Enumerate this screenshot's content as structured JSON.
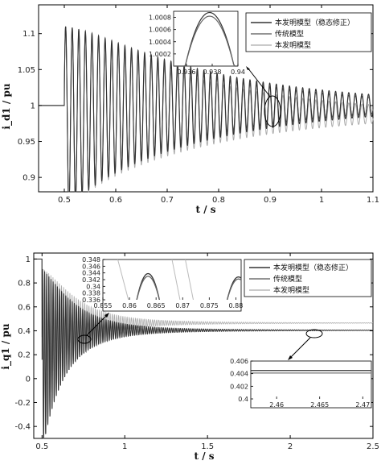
{
  "chart_data": [
    {
      "type": "line",
      "xlabel": "t / s",
      "ylabel": "i_d1 / pu",
      "xlim": [
        0.45,
        1.1
      ],
      "ylim": [
        0.88,
        1.14
      ],
      "xticks": [
        "0.5",
        "0.6",
        "0.7",
        "0.8",
        "0.9",
        "1",
        "1.1"
      ],
      "yticks": [
        "0.9",
        "0.95",
        "1",
        "1.05",
        "1.1"
      ],
      "grid": false,
      "legend_position": "top-right",
      "series": [
        {
          "name": "本发明模型（稳态修正）",
          "color": "#333333",
          "steady": 1.0,
          "step_time": 0.5,
          "amplitude0": 0.13,
          "decay_time": 0.28,
          "period": 0.0128
        },
        {
          "name": "传统模型",
          "color": "#555555",
          "steady": 1.0,
          "step_time": 0.5,
          "amplitude0": 0.13,
          "decay_time": 0.25,
          "period": 0.0128
        },
        {
          "name": "本发明模型",
          "color": "#aaaaaa",
          "steady": 0.988,
          "step_time": 0.5,
          "amplitude0": 0.13,
          "decay_time": 0.26,
          "period": 0.0128
        }
      ],
      "inset": {
        "xlim": [
          0.935,
          0.94
        ],
        "ylim": [
          1.0,
          1.0009
        ],
        "xticks": [
          "0.936",
          "0.938",
          "0.94"
        ],
        "yticks": [
          "1.0002",
          "1.0004",
          "1.0006",
          "1.0008"
        ],
        "peaks": [
          {
            "series": "本发明模型（稳态修正）",
            "x_peak": 0.9378,
            "y_peak": 1.00088
          },
          {
            "series": "传统模型",
            "x_peak": 0.9378,
            "y_peak": 1.00082
          }
        ]
      }
    },
    {
      "type": "line",
      "xlabel": "t / s",
      "ylabel": "i_q1 / pu",
      "xlim": [
        0.45,
        2.5
      ],
      "ylim": [
        -0.5,
        1.05
      ],
      "xticks": [
        "0.5",
        "1",
        "1.5",
        "2",
        "2.5"
      ],
      "yticks": [
        "-0.4",
        "-0.2",
        "0",
        "0.2",
        "0.4",
        "0.6",
        "0.8",
        "1"
      ],
      "grid": false,
      "legend_position": "top-right",
      "series": [
        {
          "name": "本发明模型（稳态修正）",
          "color": "#333333",
          "steady": 0.404,
          "initial": 1.0,
          "step_time": 0.5
        },
        {
          "name": "传统模型",
          "color": "#555555",
          "steady": 0.404,
          "initial": 1.0,
          "step_time": 0.5
        },
        {
          "name": "本发明模型",
          "color": "#aaaaaa",
          "steady": 0.465,
          "initial": 1.0,
          "step_time": 0.5
        }
      ],
      "inset_top": {
        "xlim": [
          0.855,
          0.881
        ],
        "ylim": [
          0.336,
          0.348
        ],
        "xticks": [
          "0.855",
          "0.86",
          "0.865",
          "0.87",
          "0.875",
          "0.88"
        ],
        "yticks": [
          "0.336",
          "0.338",
          "0.34",
          "0.342",
          "0.344",
          "0.346",
          "0.348"
        ]
      },
      "inset_bottom": {
        "xlim": [
          2.457,
          2.471
        ],
        "ylim": [
          0.4,
          0.406
        ],
        "xticks": [
          "2.46",
          "2.465",
          "2.47"
        ],
        "yticks": [
          "0.4",
          "0.402",
          "0.404",
          "0.406"
        ],
        "levels": [
          0.4045,
          0.4041
        ]
      }
    }
  ]
}
